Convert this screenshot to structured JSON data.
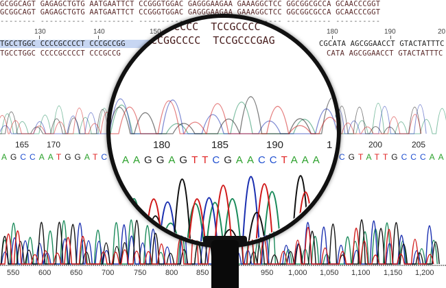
{
  "sequence_rows": {
    "row1": "GCGGCAGT GAGAGCTGTG AATGAATTCT CCGGGTGGAC GAGGGAAGAA GAAAGGCTCC GGCGGCGCCA GCAACCCGGT",
    "row2": "GCGGCAGT GAGAGCTGTG AATGAATTCT CCGGGTGGAC GAGGGAAGAA GAAAGGCTCC GGCGGCGCCA GCAACCCGGT",
    "dashes": "-------- ---------- ---------- ---------- ---------- ---------- ---------- ----------",
    "row3_left": "TGCCTGGC CCCCGCCCCT CCCGCCGG",
    "row3_right": "CGCATA AGCGGAACCT GTACTATTTC",
    "row4_left": "TGCCTGGC CCCCGCCCCT CCCGCCG",
    "row4_right": "CATA AGCGGAACCT GTACTATTTC"
  },
  "ruler_labels": [
    "130",
    "140",
    "150",
    "180",
    "190",
    "20"
  ],
  "lens_text": {
    "line1": "GGCCCC  TCCGCCCC",
    "line2": "CCGGCCCC  TCCGCCCGAG"
  },
  "base_positions": {
    "left": [
      "165",
      "170"
    ],
    "lens": [
      "180",
      "185",
      "190",
      "1"
    ],
    "right": [
      "200",
      "205"
    ]
  },
  "bases": {
    "left": "AGCCAATGGATC",
    "lens": "AAGGAGTTCGAACCTAAA",
    "right": "CGTATTGCCCAA"
  },
  "axis_labels": [
    "550",
    "600",
    "650",
    "700",
    "750",
    "800",
    "850",
    "950",
    "1,000",
    "1,050",
    "1,100",
    "1,150",
    "1,200"
  ],
  "base_colors": {
    "A": "#2aa02a",
    "C": "#1f4fd0",
    "G": "#222222",
    "T": "#e02020"
  },
  "trace_colors": {
    "A": "#1a8a5a",
    "C": "#1a2fb0",
    "G": "#111111",
    "T": "#d01818"
  }
}
